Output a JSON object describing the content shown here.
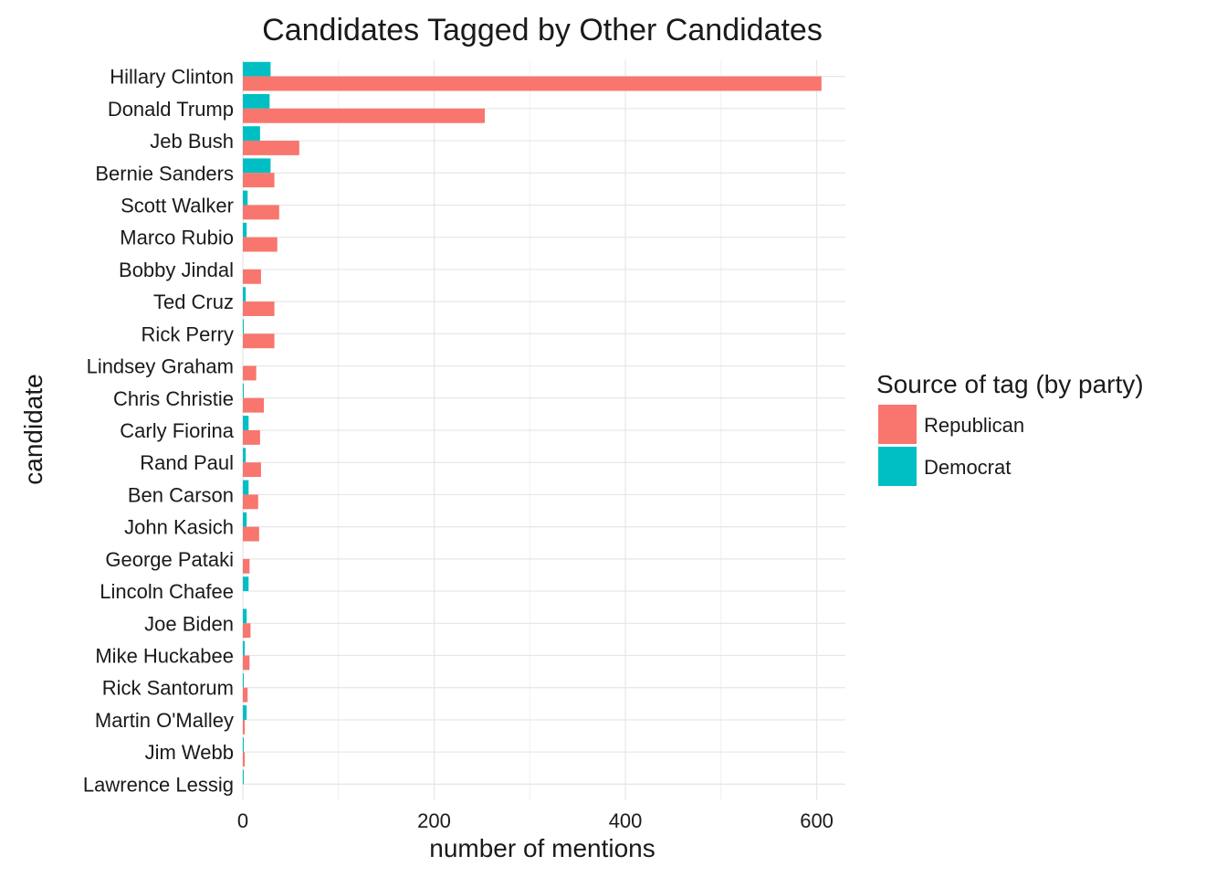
{
  "chart_data": {
    "type": "bar",
    "orientation": "horizontal",
    "title": "Candidates Tagged by Other Candidates",
    "xlabel": "number of mentions",
    "ylabel": "candidate",
    "xlim": [
      0,
      630
    ],
    "x_ticks": [
      0,
      200,
      400,
      600
    ],
    "x_tick_labels": [
      "0",
      "200",
      "400",
      "600"
    ],
    "grid": true,
    "legend": {
      "title": "Source of tag (by party)",
      "position": "right",
      "items": [
        {
          "label": "Republican",
          "color": "#F8766D"
        },
        {
          "label": "Democrat",
          "color": "#00BFC4"
        }
      ]
    },
    "categories": [
      "Hillary Clinton",
      "Donald Trump",
      "Jeb Bush",
      "Bernie Sanders",
      "Scott Walker",
      "Marco Rubio",
      "Bobby Jindal",
      "Ted Cruz",
      "Rick Perry",
      "Lindsey Graham",
      "Chris Christie",
      "Carly Fiorina",
      "Rand Paul",
      "Ben Carson",
      "John Kasich",
      "George Pataki",
      "Lincoln Chafee",
      "Joe Biden",
      "Mike Huckabee",
      "Rick Santorum",
      "Martin O'Malley",
      "Jim Webb",
      "Lawrence Lessig"
    ],
    "series": [
      {
        "name": "Republican",
        "color": "#F8766D",
        "values": [
          605,
          253,
          59,
          33,
          38,
          36,
          19,
          33,
          33,
          14,
          22,
          18,
          19,
          16,
          17,
          7,
          0,
          8,
          7,
          5,
          2,
          2,
          0
        ]
      },
      {
        "name": "Democrat",
        "color": "#00BFC4",
        "values": [
          29,
          28,
          18,
          29,
          5,
          4,
          0,
          3,
          1,
          0,
          1,
          6,
          3,
          6,
          4,
          0,
          6,
          4,
          2,
          1,
          4,
          1,
          1
        ]
      }
    ]
  }
}
